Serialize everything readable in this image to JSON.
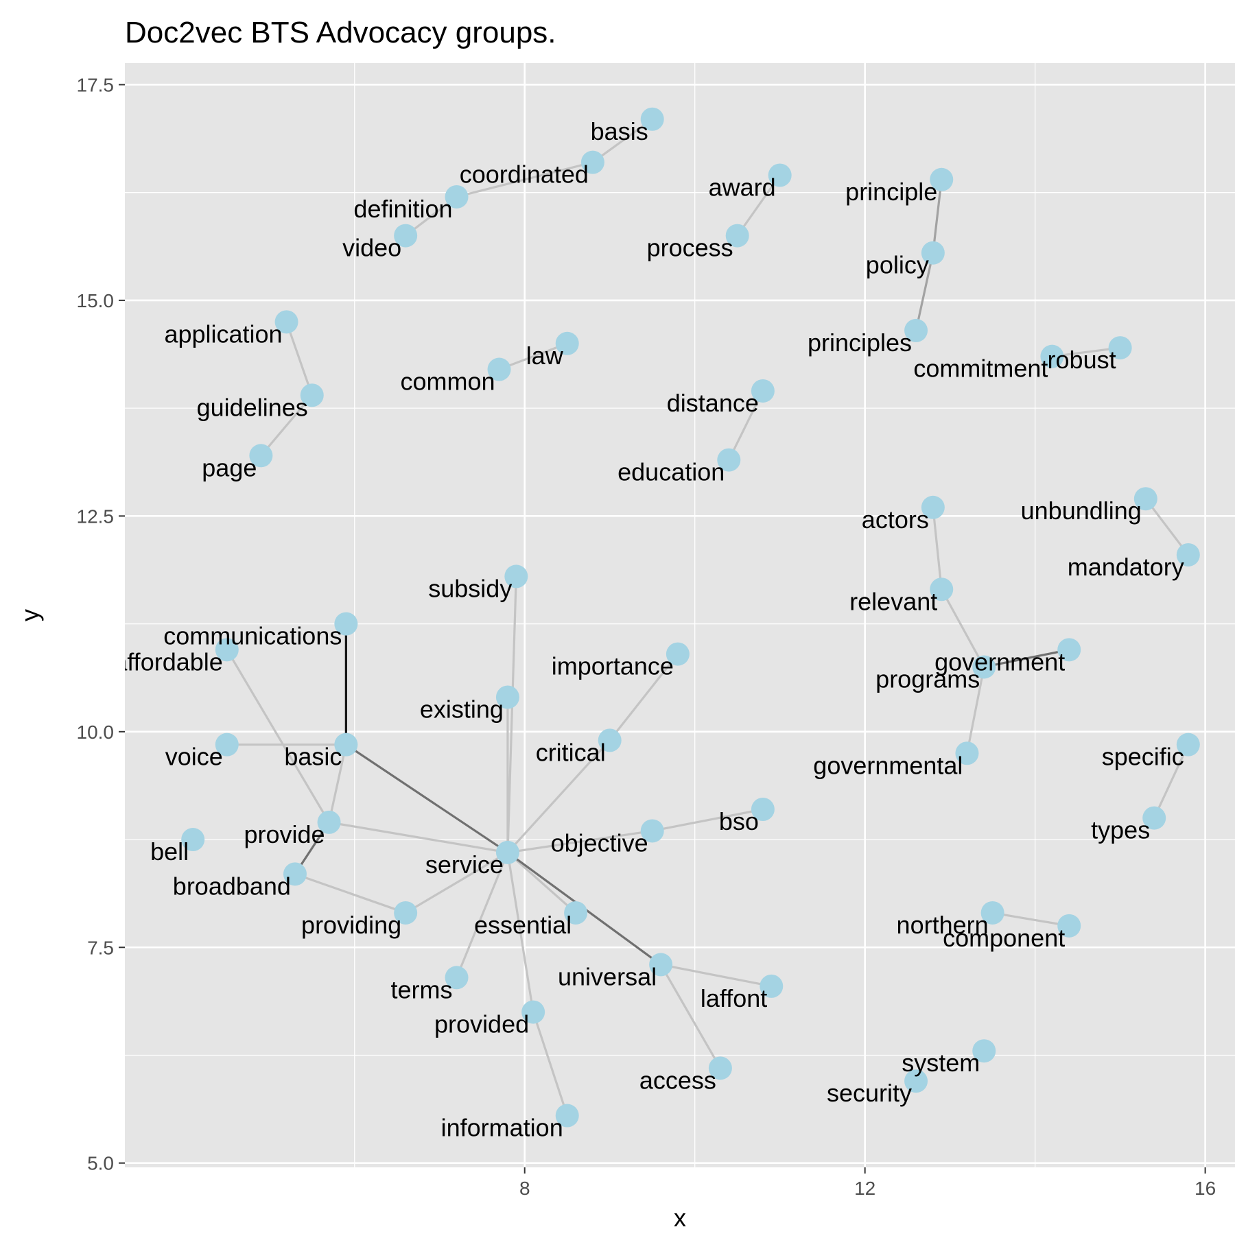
{
  "chart_data": {
    "type": "scatter",
    "title": "Doc2vec BTS Advocacy groups.",
    "xlabel": "x",
    "ylabel": "y",
    "xlim": [
      3.3,
      16.35
    ],
    "ylim": [
      4.95,
      17.75
    ],
    "x_ticks": [
      8,
      12,
      16
    ],
    "x_tick_labels": [
      "8",
      "12",
      "16"
    ],
    "y_ticks": [
      5.0,
      7.5,
      10.0,
      12.5,
      15.0,
      17.5
    ],
    "y_tick_labels": [
      "5.0",
      "7.5",
      "10.0",
      "12.5",
      "15.0",
      "17.5"
    ],
    "background": "#e5e5e5",
    "grid_color": "#ffffff",
    "point_color": "#a4d3e3",
    "grid": true,
    "points": [
      {
        "word": "basis",
        "x": 9.5,
        "y": 17.1
      },
      {
        "word": "coordinated",
        "x": 8.8,
        "y": 16.6
      },
      {
        "word": "definition",
        "x": 7.2,
        "y": 16.2
      },
      {
        "word": "video",
        "x": 6.6,
        "y": 15.75
      },
      {
        "word": "award",
        "x": 11.0,
        "y": 16.45
      },
      {
        "word": "process",
        "x": 10.5,
        "y": 15.75
      },
      {
        "word": "principle",
        "x": 12.9,
        "y": 16.4
      },
      {
        "word": "policy",
        "x": 12.8,
        "y": 15.55
      },
      {
        "word": "principles",
        "x": 12.6,
        "y": 14.65
      },
      {
        "word": "commitment",
        "x": 14.2,
        "y": 14.35
      },
      {
        "word": "robust",
        "x": 15.0,
        "y": 14.45
      },
      {
        "word": "application",
        "x": 5.2,
        "y": 14.75
      },
      {
        "word": "guidelines",
        "x": 5.5,
        "y": 13.9
      },
      {
        "word": "page",
        "x": 4.9,
        "y": 13.2
      },
      {
        "word": "law",
        "x": 8.5,
        "y": 14.5
      },
      {
        "word": "common",
        "x": 7.7,
        "y": 14.2
      },
      {
        "word": "distance",
        "x": 10.8,
        "y": 13.95
      },
      {
        "word": "education",
        "x": 10.4,
        "y": 13.15
      },
      {
        "word": "actors",
        "x": 12.8,
        "y": 12.6
      },
      {
        "word": "relevant",
        "x": 12.9,
        "y": 11.65
      },
      {
        "word": "government",
        "x": 14.4,
        "y": 10.95
      },
      {
        "word": "programs",
        "x": 13.4,
        "y": 10.75
      },
      {
        "word": "governmental",
        "x": 13.2,
        "y": 9.75
      },
      {
        "word": "unbundling",
        "x": 15.3,
        "y": 12.7
      },
      {
        "word": "mandatory",
        "x": 15.8,
        "y": 12.05
      },
      {
        "word": "specific",
        "x": 15.8,
        "y": 9.85
      },
      {
        "word": "types",
        "x": 15.4,
        "y": 9.0
      },
      {
        "word": "subsidy",
        "x": 7.9,
        "y": 11.8
      },
      {
        "word": "communications",
        "x": 5.9,
        "y": 11.25
      },
      {
        "word": "affordable",
        "x": 4.5,
        "y": 10.95
      },
      {
        "word": "importance",
        "x": 9.8,
        "y": 10.9
      },
      {
        "word": "existing",
        "x": 7.8,
        "y": 10.4
      },
      {
        "word": "critical",
        "x": 9.0,
        "y": 9.9
      },
      {
        "word": "voice",
        "x": 4.5,
        "y": 9.85
      },
      {
        "word": "basic",
        "x": 5.9,
        "y": 9.85
      },
      {
        "word": "provide",
        "x": 5.7,
        "y": 8.95
      },
      {
        "word": "bell",
        "x": 4.1,
        "y": 8.75
      },
      {
        "word": "broadband",
        "x": 5.3,
        "y": 8.35
      },
      {
        "word": "service",
        "x": 7.8,
        "y": 8.6
      },
      {
        "word": "objective",
        "x": 9.5,
        "y": 8.85
      },
      {
        "word": "bso",
        "x": 10.8,
        "y": 9.1
      },
      {
        "word": "providing",
        "x": 6.6,
        "y": 7.9
      },
      {
        "word": "essential",
        "x": 8.6,
        "y": 7.9
      },
      {
        "word": "universal",
        "x": 9.6,
        "y": 7.3
      },
      {
        "word": "laffont",
        "x": 10.9,
        "y": 7.05
      },
      {
        "word": "terms",
        "x": 7.2,
        "y": 7.15
      },
      {
        "word": "provided",
        "x": 8.1,
        "y": 6.75
      },
      {
        "word": "access",
        "x": 10.3,
        "y": 6.1
      },
      {
        "word": "information",
        "x": 8.5,
        "y": 5.55
      },
      {
        "word": "northern",
        "x": 13.5,
        "y": 7.9
      },
      {
        "word": "component",
        "x": 14.4,
        "y": 7.75
      },
      {
        "word": "system",
        "x": 13.4,
        "y": 6.3
      },
      {
        "word": "security",
        "x": 12.6,
        "y": 5.95
      }
    ],
    "edges": [
      {
        "from": "basis",
        "to": "coordinated",
        "weight": "light"
      },
      {
        "from": "coordinated",
        "to": "definition",
        "weight": "light"
      },
      {
        "from": "definition",
        "to": "video",
        "weight": "light"
      },
      {
        "from": "award",
        "to": "process",
        "weight": "light"
      },
      {
        "from": "principle",
        "to": "policy",
        "weight": "mid"
      },
      {
        "from": "policy",
        "to": "principles",
        "weight": "mid"
      },
      {
        "from": "commitment",
        "to": "robust",
        "weight": "light"
      },
      {
        "from": "application",
        "to": "guidelines",
        "weight": "light"
      },
      {
        "from": "guidelines",
        "to": "page",
        "weight": "light"
      },
      {
        "from": "common",
        "to": "law",
        "weight": "light"
      },
      {
        "from": "distance",
        "to": "education",
        "weight": "light"
      },
      {
        "from": "actors",
        "to": "relevant",
        "weight": "light"
      },
      {
        "from": "relevant",
        "to": "programs",
        "weight": "light"
      },
      {
        "from": "programs",
        "to": "government",
        "weight": "dark"
      },
      {
        "from": "programs",
        "to": "governmental",
        "weight": "light"
      },
      {
        "from": "unbundling",
        "to": "mandatory",
        "weight": "light"
      },
      {
        "from": "specific",
        "to": "types",
        "weight": "light"
      },
      {
        "from": "communications",
        "to": "basic",
        "weight": "black"
      },
      {
        "from": "affordable",
        "to": "provide",
        "weight": "light"
      },
      {
        "from": "voice",
        "to": "basic",
        "weight": "light"
      },
      {
        "from": "basic",
        "to": "provide",
        "weight": "light"
      },
      {
        "from": "basic",
        "to": "service",
        "weight": "dark"
      },
      {
        "from": "provide",
        "to": "broadband",
        "weight": "dark"
      },
      {
        "from": "provide",
        "to": "service",
        "weight": "light"
      },
      {
        "from": "broadband",
        "to": "providing",
        "weight": "light"
      },
      {
        "from": "subsidy",
        "to": "service",
        "weight": "light"
      },
      {
        "from": "existing",
        "to": "service",
        "weight": "light"
      },
      {
        "from": "importance",
        "to": "critical",
        "weight": "light"
      },
      {
        "from": "critical",
        "to": "service",
        "weight": "light"
      },
      {
        "from": "service",
        "to": "objective",
        "weight": "light"
      },
      {
        "from": "objective",
        "to": "bso",
        "weight": "light"
      },
      {
        "from": "service",
        "to": "providing",
        "weight": "light"
      },
      {
        "from": "service",
        "to": "essential",
        "weight": "light"
      },
      {
        "from": "service",
        "to": "universal",
        "weight": "dark"
      },
      {
        "from": "service",
        "to": "terms",
        "weight": "light"
      },
      {
        "from": "service",
        "to": "provided",
        "weight": "light"
      },
      {
        "from": "provided",
        "to": "information",
        "weight": "light"
      },
      {
        "from": "universal",
        "to": "laffont",
        "weight": "light"
      },
      {
        "from": "universal",
        "to": "access",
        "weight": "light"
      },
      {
        "from": "northern",
        "to": "component",
        "weight": "light"
      }
    ]
  }
}
